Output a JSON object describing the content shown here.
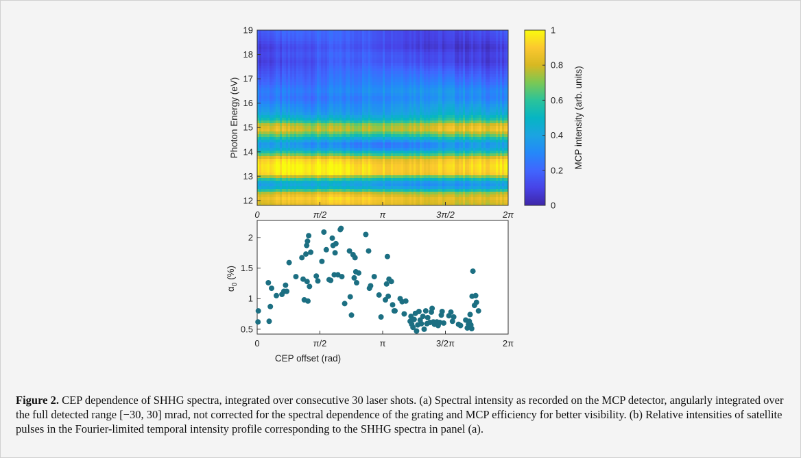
{
  "chart_data": [
    {
      "type": "heatmap",
      "panel": "(a)",
      "ylabel": "Photon Energy (eV)",
      "xlabel": "",
      "x_ticks": [
        "0",
        "π/2",
        "π",
        "3π/2",
        "2π"
      ],
      "y_ticks": [
        "12",
        "13",
        "14",
        "15",
        "16",
        "17",
        "18",
        "19"
      ],
      "ylim": [
        11.8,
        19
      ],
      "xlim": [
        0,
        6.2832
      ],
      "colormap": "parula",
      "colorbar": {
        "label": "MCP intensity (arb. units)",
        "ticks": [
          "0",
          "0.2",
          "0.4",
          "0.6",
          "0.8",
          "1"
        ],
        "range": [
          0,
          1
        ]
      },
      "energy_profile": {
        "energy_eV": [
          11.8,
          12.1,
          12.3,
          12.5,
          12.7,
          12.9,
          13.1,
          13.4,
          13.7,
          13.9,
          14.1,
          14.3,
          14.5,
          14.7,
          14.9,
          15.1,
          15.3,
          15.6,
          15.9,
          16.2,
          16.5,
          16.8,
          17.1,
          17.4,
          17.7,
          18.0,
          18.3,
          18.6,
          19.0
        ],
        "intensity": [
          0.82,
          0.88,
          0.78,
          0.45,
          0.35,
          0.6,
          0.9,
          0.92,
          0.86,
          0.6,
          0.4,
          0.3,
          0.45,
          0.65,
          0.82,
          0.78,
          0.55,
          0.4,
          0.35,
          0.28,
          0.32,
          0.26,
          0.22,
          0.18,
          0.13,
          0.15,
          0.1,
          0.14,
          0.16
        ]
      }
    },
    {
      "type": "scatter",
      "panel": "(b)",
      "xlabel": "CEP offset (rad)",
      "ylabel": "α0 (%)",
      "ylabel_main": "α",
      "ylabel_sub": "0",
      "ylabel_rest": " (%)",
      "x_ticks": [
        "0",
        "π/2",
        "π",
        "3/2π",
        "2π"
      ],
      "y_ticks": [
        "0.5",
        "1",
        "1.5",
        "2"
      ],
      "xlim": [
        0,
        6.2832
      ],
      "ylim": [
        0.42,
        2.28
      ],
      "marker_color": "#1c6f82",
      "points": [
        [
          0.02,
          0.62
        ],
        [
          0.03,
          0.8
        ],
        [
          0.28,
          1.26
        ],
        [
          0.3,
          0.63
        ],
        [
          0.33,
          0.87
        ],
        [
          0.36,
          1.17
        ],
        [
          0.48,
          1.05
        ],
        [
          0.62,
          1.07
        ],
        [
          0.67,
          1.12
        ],
        [
          0.71,
          1.22
        ],
        [
          0.74,
          1.12
        ],
        [
          0.8,
          1.59
        ],
        [
          0.97,
          1.36
        ],
        [
          1.12,
          1.67
        ],
        [
          1.15,
          1.32
        ],
        [
          1.18,
          0.98
        ],
        [
          1.22,
          1.73
        ],
        [
          1.24,
          1.87
        ],
        [
          1.25,
          1.28
        ],
        [
          1.26,
          1.94
        ],
        [
          1.27,
          0.96
        ],
        [
          1.29,
          2.03
        ],
        [
          1.31,
          1.2
        ],
        [
          1.34,
          1.76
        ],
        [
          1.48,
          1.37
        ],
        [
          1.52,
          1.29
        ],
        [
          1.62,
          1.61
        ],
        [
          1.67,
          2.09
        ],
        [
          1.73,
          1.8
        ],
        [
          1.8,
          1.31
        ],
        [
          1.84,
          1.3
        ],
        [
          1.88,
          1.99
        ],
        [
          1.9,
          1.87
        ],
        [
          1.93,
          1.39
        ],
        [
          1.95,
          1.75
        ],
        [
          1.97,
          1.9
        ],
        [
          2.02,
          1.39
        ],
        [
          2.08,
          2.13
        ],
        [
          2.1,
          2.15
        ],
        [
          2.12,
          1.36
        ],
        [
          2.19,
          0.92
        ],
        [
          2.31,
          1.78
        ],
        [
          2.33,
          1.03
        ],
        [
          2.36,
          0.73
        ],
        [
          2.4,
          1.72
        ],
        [
          2.43,
          1.34
        ],
        [
          2.45,
          1.67
        ],
        [
          2.47,
          1.44
        ],
        [
          2.49,
          1.26
        ],
        [
          2.54,
          1.42
        ],
        [
          2.72,
          2.05
        ],
        [
          2.79,
          1.78
        ],
        [
          2.81,
          1.17
        ],
        [
          2.84,
          1.21
        ],
        [
          2.93,
          1.36
        ],
        [
          3.05,
          1.06
        ],
        [
          3.1,
          0.7
        ],
        [
          3.21,
          0.98
        ],
        [
          3.24,
          1.24
        ],
        [
          3.26,
          1.69
        ],
        [
          3.28,
          1.04
        ],
        [
          3.3,
          1.32
        ],
        [
          3.36,
          1.28
        ],
        [
          3.39,
          0.9
        ],
        [
          3.43,
          0.8
        ],
        [
          3.45,
          0.8
        ],
        [
          3.58,
          1.0
        ],
        [
          3.63,
          0.95
        ],
        [
          3.68,
          0.75
        ],
        [
          3.72,
          0.96
        ],
        [
          3.83,
          0.63
        ],
        [
          3.85,
          0.71
        ],
        [
          3.87,
          0.58
        ],
        [
          3.9,
          0.53
        ],
        [
          3.93,
          0.66
        ],
        [
          3.96,
          0.76
        ],
        [
          3.99,
          0.47
        ],
        [
          4.02,
          0.57
        ],
        [
          4.05,
          0.79
        ],
        [
          4.08,
          0.65
        ],
        [
          4.11,
          0.59
        ],
        [
          4.15,
          0.71
        ],
        [
          4.18,
          0.5
        ],
        [
          4.22,
          0.8
        ],
        [
          4.25,
          0.59
        ],
        [
          4.27,
          0.69
        ],
        [
          4.33,
          0.61
        ],
        [
          4.36,
          0.78
        ],
        [
          4.38,
          0.84
        ],
        [
          4.41,
          0.62
        ],
        [
          4.44,
          0.58
        ],
        [
          4.47,
          0.6
        ],
        [
          4.5,
          0.62
        ],
        [
          4.53,
          0.56
        ],
        [
          4.57,
          0.61
        ],
        [
          4.61,
          0.73
        ],
        [
          4.63,
          0.79
        ],
        [
          4.67,
          0.6
        ],
        [
          4.8,
          0.72
        ],
        [
          4.85,
          0.78
        ],
        [
          4.89,
          0.63
        ],
        [
          4.92,
          0.7
        ],
        [
          5.04,
          0.58
        ],
        [
          5.09,
          0.56
        ],
        [
          5.22,
          0.65
        ],
        [
          5.26,
          0.52
        ],
        [
          5.29,
          0.58
        ],
        [
          5.31,
          0.63
        ],
        [
          5.33,
          0.74
        ],
        [
          5.35,
          0.57
        ],
        [
          5.38,
          1.04
        ],
        [
          5.4,
          1.45
        ],
        [
          5.44,
          0.89
        ],
        [
          5.47,
          1.05
        ],
        [
          5.49,
          0.94
        ],
        [
          5.54,
          0.8
        ],
        [
          5.37,
          0.51
        ]
      ]
    }
  ],
  "caption": {
    "label": "Figure 2.",
    "text": " CEP dependence of SHHG spectra, integrated over consecutive 30 laser shots. (a) Spectral intensity as recorded on the MCP detector, angularly integrated over the full detected range [−30, 30] mrad, not corrected for the spectral dependence of the grating and MCP efficiency for better visibility. (b) Relative intensities of satellite pulses in the Fourier-limited temporal intensity profile corresponding to the SHHG spectra in panel (a)."
  }
}
